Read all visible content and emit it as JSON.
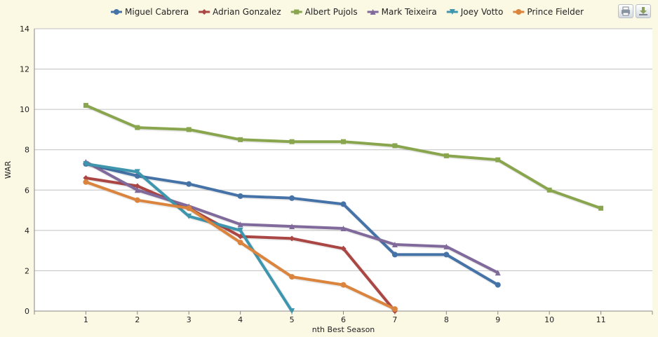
{
  "chart_data": {
    "type": "line",
    "title": "",
    "xlabel": "nth Best Season",
    "ylabel": "WAR",
    "xlim": [
      0,
      12
    ],
    "ylim": [
      0,
      14
    ],
    "x_ticks": [
      1,
      2,
      3,
      4,
      5,
      6,
      7,
      8,
      9,
      10,
      11
    ],
    "y_ticks": [
      0,
      2,
      4,
      6,
      8,
      10,
      12,
      14
    ],
    "grid": "horizontal",
    "legend": "top-center",
    "series": [
      {
        "name": "Miguel Cabrera",
        "color": "#4572a7",
        "marker": "circle",
        "x": [
          1,
          2,
          3,
          4,
          5,
          6,
          7,
          8,
          9
        ],
        "values": [
          7.3,
          6.7,
          6.3,
          5.7,
          5.6,
          5.3,
          2.8,
          2.8,
          1.3
        ]
      },
      {
        "name": "Adrian Gonzalez",
        "color": "#aa4643",
        "marker": "diamond",
        "x": [
          1,
          2,
          3,
          4,
          5,
          6,
          7
        ],
        "values": [
          6.6,
          6.2,
          5.1,
          3.7,
          3.6,
          3.1,
          0.0
        ]
      },
      {
        "name": "Albert Pujols",
        "color": "#89a54e",
        "marker": "square",
        "x": [
          1,
          2,
          3,
          4,
          5,
          6,
          7,
          8,
          9,
          10,
          11
        ],
        "values": [
          10.2,
          9.1,
          9.0,
          8.5,
          8.4,
          8.4,
          8.2,
          7.7,
          7.5,
          6.0,
          5.1
        ]
      },
      {
        "name": "Mark Teixeira",
        "color": "#80699b",
        "marker": "triangle",
        "x": [
          1,
          2,
          3,
          4,
          5,
          6,
          7,
          8,
          9
        ],
        "values": [
          7.4,
          6.0,
          5.2,
          4.3,
          4.2,
          4.1,
          3.3,
          3.2,
          1.9
        ]
      },
      {
        "name": "Joey Votto",
        "color": "#3d96ae",
        "marker": "triangle-down",
        "x": [
          1,
          2,
          3,
          4,
          5
        ],
        "values": [
          7.3,
          6.9,
          4.7,
          4.0,
          0.0
        ]
      },
      {
        "name": "Prince Fielder",
        "color": "#db843d",
        "marker": "circle",
        "x": [
          1,
          2,
          3,
          4,
          5,
          6,
          7
        ],
        "values": [
          6.4,
          5.5,
          5.1,
          3.4,
          1.7,
          1.3,
          0.1
        ]
      }
    ]
  },
  "toolbar": {
    "print_icon": "printer-icon",
    "download_icon": "download-icon"
  }
}
